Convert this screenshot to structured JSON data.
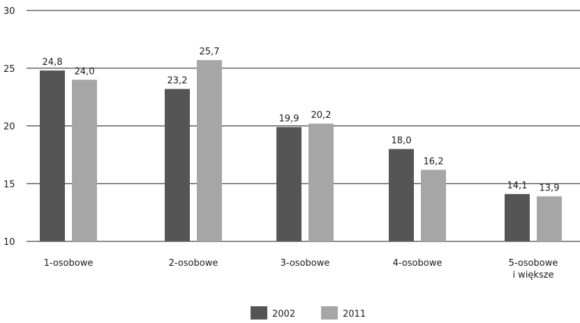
{
  "chart_data": {
    "type": "bar",
    "title": "",
    "xlabel": "",
    "ylabel": "",
    "categories": [
      [
        "1-osobowe"
      ],
      [
        "2-osobowe"
      ],
      [
        "3-osobowe"
      ],
      [
        "4-osobowe"
      ],
      [
        "5-osobowe",
        "i większe"
      ]
    ],
    "series": [
      {
        "name": "2002",
        "color": "#555555",
        "values": [
          24.8,
          23.2,
          19.9,
          18.0,
          14.1
        ],
        "labels": [
          "24,8",
          "23,2",
          "19,9",
          "18,0",
          "14,1"
        ]
      },
      {
        "name": "2011",
        "color": "#a6a6a6",
        "values": [
          24.0,
          25.7,
          20.2,
          16.2,
          13.9
        ],
        "labels": [
          "24,0",
          "25,7",
          "20,2",
          "16,2",
          "13,9"
        ]
      }
    ],
    "ylim": [
      10,
      30
    ],
    "yticks": [
      10,
      15,
      20,
      25,
      30
    ],
    "ytick_labels": [
      "10",
      "15",
      "20",
      "25",
      "30"
    ],
    "grid": true,
    "legend_position": "bottom-center",
    "grid_color": "#1a1a1a"
  }
}
